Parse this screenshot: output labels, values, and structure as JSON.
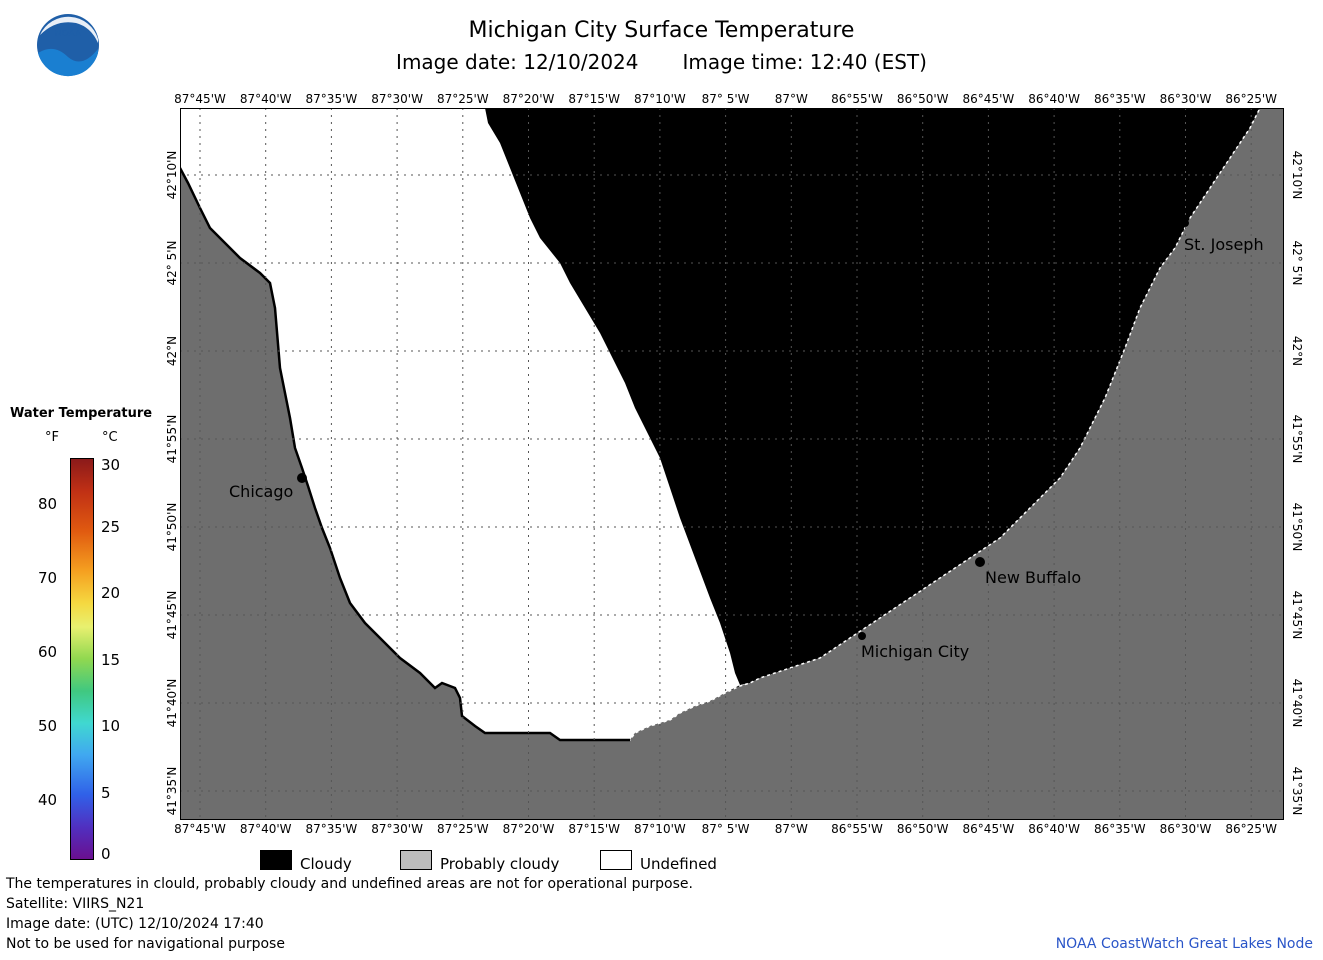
{
  "header": {
    "title": "Michigan City Surface Temperature",
    "image_date_label": "Image date: 12/10/2024",
    "image_time_label": "Image time: 12:40 (EST)"
  },
  "logo": {
    "text": "NOAA"
  },
  "map": {
    "lon_labels": [
      "87°45'W",
      "87°40'W",
      "87°35'W",
      "87°30'W",
      "87°25'W",
      "87°20'W",
      "87°15'W",
      "87°10'W",
      "87° 5'W",
      "87°W",
      "86°55'W",
      "86°50'W",
      "86°45'W",
      "86°40'W",
      "86°35'W",
      "86°30'W",
      "86°25'W"
    ],
    "lat_labels": [
      "42°10'N",
      "42° 5'N",
      "42°N",
      "41°55'N",
      "41°50'N",
      "41°45'N",
      "41°40'N",
      "41°35'N"
    ],
    "cities": [
      {
        "name": "Chicago"
      },
      {
        "name": "Michigan City"
      },
      {
        "name": "New Buffalo"
      },
      {
        "name": "St. Joseph"
      }
    ],
    "colors": {
      "cloudy": "#000000",
      "probably_cloudy_land": "#6e6e6e",
      "undefined": "#ffffff",
      "grid": "#555555"
    }
  },
  "scale": {
    "title": "Water Temperature",
    "unit_f": "°F",
    "unit_c": "°C",
    "f_ticks": [
      "80",
      "70",
      "60",
      "50",
      "40"
    ],
    "c_ticks": [
      "30",
      "25",
      "20",
      "15",
      "10",
      "5",
      "0"
    ]
  },
  "legend": {
    "cloudy": "Cloudy",
    "probably_cloudy": "Probably cloudy",
    "undefined": "Undefined"
  },
  "footer": {
    "line1": "The temperatures in clould, probably cloudy and undefined areas are not for operational purpose.",
    "line2": "Satellite: VIIRS_N21",
    "line3": "Image date: (UTC) 12/10/2024  17:40",
    "line4": "Not to be used for navigational purpose",
    "credit": "NOAA CoastWatch Great Lakes Node"
  }
}
